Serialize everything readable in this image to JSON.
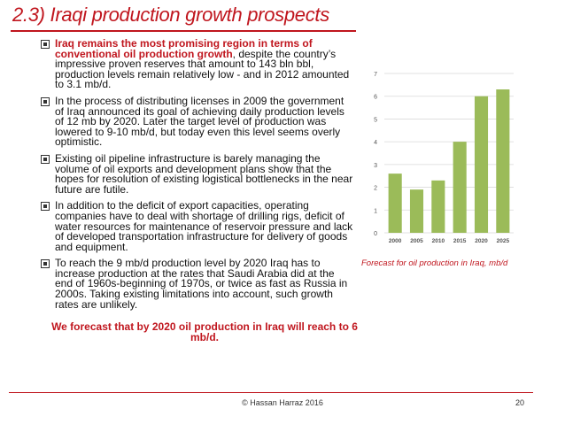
{
  "title": "2.3) Iraqi production growth prospects",
  "bullets": [
    {
      "highlight": "Iraq remains the most promising region in terms of conventional oil production growth",
      "text": ", despite the country’s impressive proven reserves that amount to 143 bln bbl, production levels remain relatively low - and in 2012 amounted to 3.1 mb/d."
    },
    {
      "highlight": "",
      "text": "In the process of distributing licenses in 2009 the government of Iraq announced its goal of achieving daily production levels of 12 mb by 2020. Later the target level of production was lowered to 9-10 mb/d, but today even this level seems overly optimistic."
    },
    {
      "highlight": "",
      "text": "Existing oil pipeline infrastructure is barely managing the volume of oil exports and development plans show that the hopes for resolution of existing logistical bottlenecks in the near future are futile."
    },
    {
      "highlight": "",
      "text": "In addition to the deficit of export capacities, operating companies have to deal with shortage of drilling rigs, deficit of water resources for maintenance of reservoir pressure and lack of developed transportation infrastructure for delivery of goods and equipment."
    },
    {
      "highlight": "",
      "text": "To reach the 9 mb/d production level by 2020 Iraq has to increase production at the rates that Saudi Arabia did at the end of 1960s-beginning of 1970s, or twice as fast as Russia in 2000s. Taking existing limitations into account, such growth rates are unlikely."
    }
  ],
  "conclusion": "We forecast that by 2020 oil production in Iraq will reach to 6 mb/d.",
  "chart_data": {
    "type": "bar",
    "categories": [
      "2000",
      "2005",
      "2010",
      "2015",
      "2020",
      "2025"
    ],
    "values": [
      2.6,
      1.9,
      2.3,
      4.0,
      6.0,
      6.3
    ],
    "ylim": [
      0,
      7
    ],
    "yticks": [
      "0",
      "1",
      "2",
      "3",
      "4",
      "5",
      "6",
      "7"
    ],
    "grid": true,
    "bar_color": "#9bbb59",
    "caption": "Forecast for oil production in Iraq, mb/d"
  },
  "footer": {
    "copyright": "©  Hassan Harraz  2016",
    "page": "20"
  },
  "colors": {
    "accent": "#c0161e"
  }
}
